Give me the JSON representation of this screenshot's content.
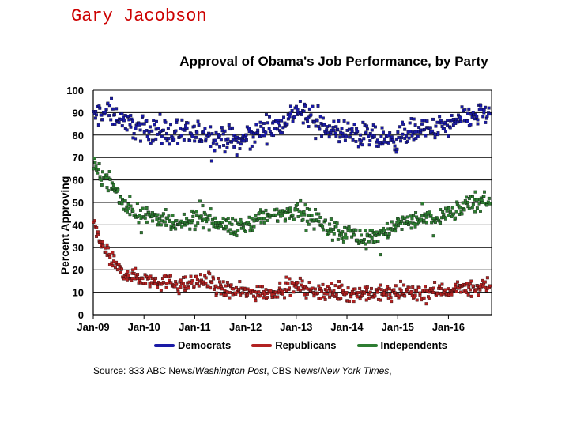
{
  "header": {
    "author": "Gary Jacobson"
  },
  "chart_data": {
    "type": "scatter",
    "title": "Approval of Obama's Job Performance, by Party",
    "xlabel": "",
    "ylabel": "Percent Approving",
    "ylim": [
      0,
      100
    ],
    "yticks": [
      0,
      10,
      20,
      30,
      40,
      50,
      60,
      70,
      80,
      90,
      100
    ],
    "xlim": [
      2009.0,
      2016.85
    ],
    "xticks": [
      {
        "value": 2009,
        "label": "Jan-09"
      },
      {
        "value": 2010,
        "label": "Jan-10"
      },
      {
        "value": 2011,
        "label": "Jan-11"
      },
      {
        "value": 2012,
        "label": "Jan-12"
      },
      {
        "value": 2013,
        "label": "Jan-13"
      },
      {
        "value": 2014,
        "label": "Jan-14"
      },
      {
        "value": 2015,
        "label": "Jan-15"
      },
      {
        "value": 2016,
        "label": "Jan-16"
      }
    ],
    "grid": true,
    "legend_position": "bottom",
    "point_count": 833,
    "series": [
      {
        "name": "Democrats",
        "color": "#1a1aa6",
        "trend": [
          [
            2009.0,
            88
          ],
          [
            2009.3,
            91
          ],
          [
            2009.8,
            84
          ],
          [
            2010.3,
            82
          ],
          [
            2010.8,
            80
          ],
          [
            2011.2,
            80
          ],
          [
            2011.6,
            78
          ],
          [
            2011.9,
            77
          ],
          [
            2012.3,
            82
          ],
          [
            2012.7,
            85
          ],
          [
            2013.0,
            91
          ],
          [
            2013.4,
            85
          ],
          [
            2013.8,
            81
          ],
          [
            2014.2,
            80
          ],
          [
            2014.6,
            78
          ],
          [
            2014.9,
            77
          ],
          [
            2015.2,
            82
          ],
          [
            2015.6,
            82
          ],
          [
            2016.0,
            84
          ],
          [
            2016.4,
            88
          ],
          [
            2016.8,
            90
          ]
        ],
        "spread": 4.5
      },
      {
        "name": "Republicans",
        "color": "#b22222",
        "trend": [
          [
            2009.0,
            40
          ],
          [
            2009.15,
            32
          ],
          [
            2009.3,
            26
          ],
          [
            2009.5,
            20
          ],
          [
            2009.8,
            17
          ],
          [
            2010.3,
            15
          ],
          [
            2010.8,
            13
          ],
          [
            2011.1,
            15
          ],
          [
            2011.3,
            15
          ],
          [
            2011.6,
            11
          ],
          [
            2012.0,
            10
          ],
          [
            2012.5,
            10
          ],
          [
            2012.9,
            13
          ],
          [
            2013.3,
            11
          ],
          [
            2013.8,
            10
          ],
          [
            2014.5,
            9
          ],
          [
            2015.0,
            10
          ],
          [
            2015.5,
            10
          ],
          [
            2016.0,
            11
          ],
          [
            2016.5,
            12
          ],
          [
            2016.8,
            13
          ]
        ],
        "spread": 3
      },
      {
        "name": "Independents",
        "color": "#2e7d32",
        "trend": [
          [
            2009.0,
            65
          ],
          [
            2009.2,
            62
          ],
          [
            2009.4,
            57
          ],
          [
            2009.6,
            49
          ],
          [
            2009.9,
            45
          ],
          [
            2010.3,
            43
          ],
          [
            2010.7,
            39
          ],
          [
            2011.1,
            44
          ],
          [
            2011.5,
            41
          ],
          [
            2011.8,
            38
          ],
          [
            2012.2,
            42
          ],
          [
            2012.7,
            45
          ],
          [
            2013.0,
            48
          ],
          [
            2013.4,
            42
          ],
          [
            2013.8,
            38
          ],
          [
            2014.3,
            34
          ],
          [
            2014.7,
            36
          ],
          [
            2015.0,
            40
          ],
          [
            2015.3,
            42
          ],
          [
            2015.7,
            43
          ],
          [
            2016.0,
            45
          ],
          [
            2016.4,
            49
          ],
          [
            2016.8,
            52
          ]
        ],
        "spread": 3.5
      }
    ]
  },
  "source": {
    "prefix": "Source:  833 ABC News/",
    "outlet1": "Washington  Post",
    "middle": ", CBS News/",
    "outlet2": "New  York Times",
    "suffix": ","
  }
}
